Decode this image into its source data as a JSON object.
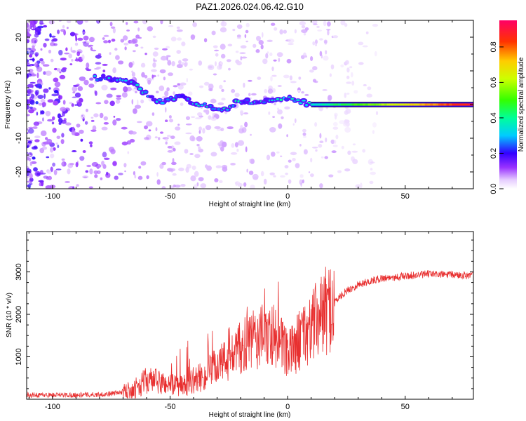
{
  "title": "PAZ1.2026.024.06.42.G10",
  "chart_data": [
    {
      "type": "heatmap",
      "title": "PAZ1.2026.024.06.42.G10",
      "xlabel": "Height of straight line (km)",
      "ylabel": "Frequency (Hz)",
      "colorbar_label": "Normalized spectral amplitude",
      "xlim": [
        -111,
        79
      ],
      "ylim": [
        -25,
        25
      ],
      "xticks": [
        -100,
        -50,
        0,
        50
      ],
      "yticks": [
        -20,
        -10,
        0,
        10,
        20
      ],
      "colorbar_range": [
        0.0,
        0.95
      ],
      "colorbar_ticks": [
        0.0,
        0.2,
        0.4,
        0.6,
        0.8
      ],
      "frequency_track": {
        "x": [
          -80,
          -70,
          -65,
          -60,
          -55,
          -50,
          -45,
          -40,
          -35,
          -30,
          -27,
          -22,
          -15,
          -8,
          -4,
          0,
          5,
          10,
          15,
          25,
          79
        ],
        "y": [
          8,
          7,
          6,
          3,
          1,
          1.5,
          2,
          0.5,
          0,
          -1,
          -1.5,
          0.5,
          1,
          1,
          2,
          2,
          1,
          0,
          0,
          0,
          0
        ]
      },
      "colormap": [
        {
          "stop": 0.0,
          "color": "#ffffff"
        },
        {
          "stop": 0.05,
          "color": "#e6ccff"
        },
        {
          "stop": 0.12,
          "color": "#9933ff"
        },
        {
          "stop": 0.2,
          "color": "#3300ff"
        },
        {
          "stop": 0.3,
          "color": "#00ccff"
        },
        {
          "stop": 0.4,
          "color": "#00ff99"
        },
        {
          "stop": 0.5,
          "color": "#33ff00"
        },
        {
          "stop": 0.62,
          "color": "#ccff00"
        },
        {
          "stop": 0.72,
          "color": "#ffcc00"
        },
        {
          "stop": 0.83,
          "color": "#ff3300"
        },
        {
          "stop": 0.95,
          "color": "#ff0066"
        }
      ]
    },
    {
      "type": "line",
      "xlabel": "Height of straight line (km)",
      "ylabel": "SNR (10 * v/v)",
      "xlim": [
        -111,
        79
      ],
      "ylim": [
        0,
        3950
      ],
      "xticks": [
        -100,
        -50,
        0,
        50
      ],
      "yticks": [
        1000,
        2000,
        3000
      ],
      "series": [
        {
          "name": "SNR",
          "color": "#e83030",
          "x": [
            -111,
            -100,
            -90,
            -80,
            -72,
            -65,
            -60,
            -55,
            -50,
            -45,
            -40,
            -35,
            -30,
            -25,
            -20,
            -15,
            -10,
            -5,
            0,
            5,
            10,
            15,
            20,
            25,
            30,
            35,
            40,
            50,
            60,
            70,
            79
          ],
          "y": [
            100,
            100,
            100,
            110,
            150,
            250,
            450,
            400,
            350,
            300,
            450,
            550,
            800,
            950,
            1200,
            1350,
            1500,
            1500,
            1000,
            1400,
            1700,
            2000,
            2300,
            2550,
            2700,
            2780,
            2850,
            2900,
            2950,
            2930,
            2920
          ]
        }
      ]
    }
  ]
}
